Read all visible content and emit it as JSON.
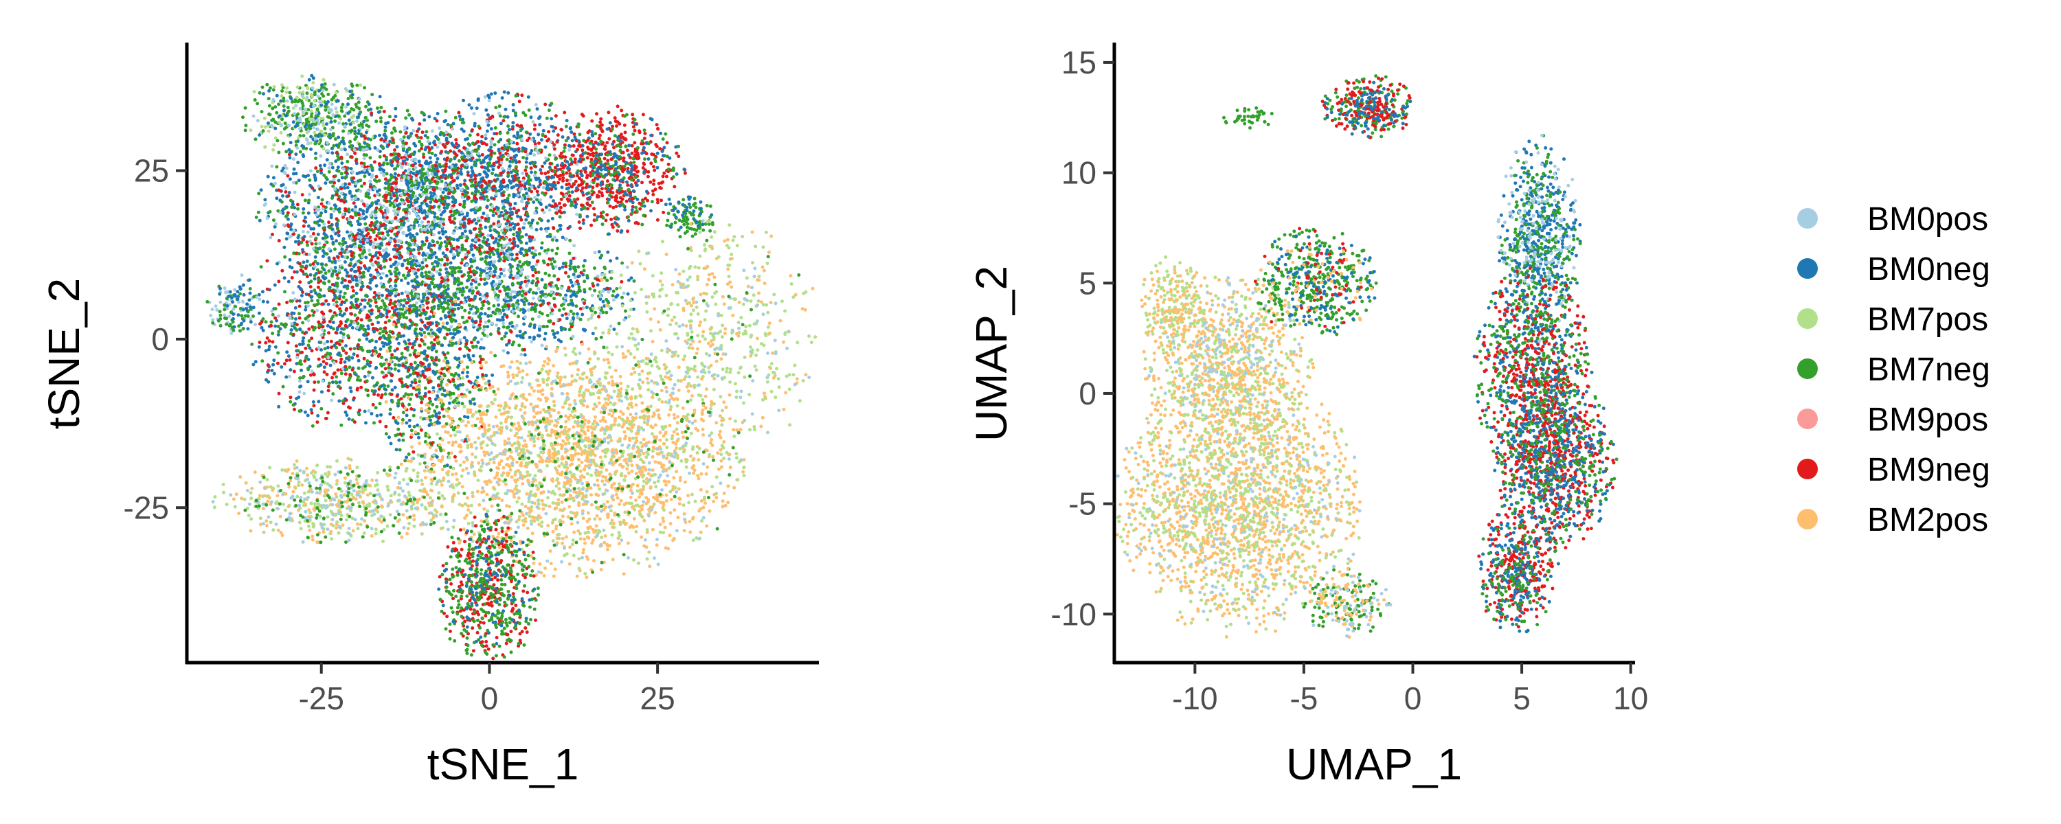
{
  "chart_data": [
    {
      "type": "scatter",
      "title": "",
      "xlabel": "tSNE_1",
      "ylabel": "tSNE_2",
      "xlim": [
        -45,
        49
      ],
      "ylim": [
        -48,
        44
      ],
      "xticks": [
        -25,
        0,
        25
      ],
      "yticks": [
        -25,
        0,
        25
      ],
      "xtick_labels": [
        "-25",
        "0",
        "25"
      ],
      "ytick_labels": [
        "-25",
        "0",
        "25"
      ],
      "grid": false,
      "clusters": [
        {
          "name": "top-left-island",
          "cx": -26,
          "cy": 33,
          "rx": 7,
          "ry": 4,
          "n": 420,
          "mix": {
            "BM7neg": 0.55,
            "BM7pos": 0.2,
            "BM0neg": 0.15,
            "BM0pos": 0.1
          }
        },
        {
          "name": "upper-main",
          "cx": -14,
          "cy": 19,
          "rx": 13,
          "ry": 10,
          "n": 2000,
          "mix": {
            "BM0neg": 0.45,
            "BM7neg": 0.25,
            "BM9neg": 0.15,
            "BM0pos": 0.15
          }
        },
        {
          "name": "upper-mid",
          "cx": 2,
          "cy": 24,
          "rx": 9,
          "ry": 8,
          "n": 900,
          "mix": {
            "BM0neg": 0.45,
            "BM9neg": 0.25,
            "BM7neg": 0.2,
            "BM0pos": 0.1
          }
        },
        {
          "name": "upper-right-red",
          "cx": 18,
          "cy": 25,
          "rx": 7,
          "ry": 6,
          "n": 700,
          "mix": {
            "BM9neg": 0.6,
            "BM7neg": 0.2,
            "BM0neg": 0.2
          }
        },
        {
          "name": "left-lower",
          "cx": -22,
          "cy": 2,
          "rx": 9,
          "ry": 10,
          "n": 900,
          "mix": {
            "BM0neg": 0.35,
            "BM9neg": 0.3,
            "BM7neg": 0.3,
            "BM0pos": 0.05
          }
        },
        {
          "name": "center-mid",
          "cx": 3,
          "cy": 7,
          "rx": 12,
          "ry": 6,
          "n": 1000,
          "mix": {
            "BM0neg": 0.4,
            "BM7neg": 0.35,
            "BM0pos": 0.15,
            "BM9neg": 0.1
          }
        },
        {
          "name": "center-low",
          "cx": -9,
          "cy": -5,
          "rx": 6,
          "ry": 9,
          "n": 600,
          "mix": {
            "BM7neg": 0.45,
            "BM0neg": 0.3,
            "BM9neg": 0.15,
            "BM2pos": 0.1
          }
        },
        {
          "name": "far-left-small",
          "cx": -38,
          "cy": 5,
          "rx": 2.5,
          "ry": 3,
          "n": 130,
          "mix": {
            "BM0pos": 0.4,
            "BM7neg": 0.3,
            "BM0neg": 0.3
          }
        },
        {
          "name": "small-right-green",
          "cx": 30,
          "cy": 18,
          "rx": 2.5,
          "ry": 2,
          "n": 100,
          "mix": {
            "BM7neg": 0.8,
            "BM0neg": 0.2
          }
        },
        {
          "name": "lower-beige",
          "cx": 13,
          "cy": -18,
          "rx": 16,
          "ry": 11,
          "n": 2200,
          "mix": {
            "BM2pos": 0.65,
            "BM7pos": 0.2,
            "BM0pos": 0.1,
            "BM7neg": 0.05
          }
        },
        {
          "name": "right-scatter",
          "cx": 32,
          "cy": 0,
          "rx": 11,
          "ry": 12,
          "n": 600,
          "mix": {
            "BM7pos": 0.55,
            "BM2pos": 0.25,
            "BM0pos": 0.15,
            "BM7neg": 0.05
          }
        },
        {
          "name": "lower-left-tail",
          "cx": -22,
          "cy": -24,
          "rx": 12,
          "ry": 4,
          "n": 600,
          "mix": {
            "BM7pos": 0.35,
            "BM2pos": 0.3,
            "BM0pos": 0.2,
            "BM7neg": 0.15
          }
        },
        {
          "name": "bottom-red-green",
          "cx": 0,
          "cy": -37,
          "rx": 5,
          "ry": 7,
          "n": 650,
          "mix": {
            "BM9neg": 0.4,
            "BM7neg": 0.45,
            "BM0neg": 0.15
          }
        }
      ]
    },
    {
      "type": "scatter",
      "title": "",
      "xlabel": "UMAP_1",
      "ylabel": "UMAP_2",
      "xlim": [
        -13.7,
        10.2
      ],
      "ylim": [
        -12.2,
        15.9
      ],
      "xticks": [
        -10,
        -5,
        0,
        5,
        10
      ],
      "yticks": [
        -10,
        -5,
        0,
        5,
        10,
        15
      ],
      "xtick_labels": [
        "-10",
        "-5",
        "0",
        "5",
        "10"
      ],
      "ytick_labels": [
        "-10",
        "-5",
        "0",
        "5",
        "10",
        "15"
      ],
      "grid": false,
      "clusters": [
        {
          "name": "left-body-top",
          "cx": -8.5,
          "cy": 1.5,
          "rx": 2.5,
          "ry": 2.5,
          "n": 900,
          "mix": {
            "BM2pos": 0.55,
            "BM7pos": 0.3,
            "BM0pos": 0.15
          }
        },
        {
          "name": "left-body-bottom",
          "cx": -8,
          "cy": -5,
          "rx": 3.6,
          "ry": 3.8,
          "n": 2000,
          "mix": {
            "BM2pos": 0.6,
            "BM7pos": 0.3,
            "BM0pos": 0.1
          }
        },
        {
          "name": "left-body-upper-arm",
          "cx": -11,
          "cy": 4,
          "rx": 1,
          "ry": 1.5,
          "n": 200,
          "mix": {
            "BM7pos": 0.6,
            "BM2pos": 0.4
          }
        },
        {
          "name": "green-arm",
          "cx": -4.5,
          "cy": 5,
          "rx": 1.8,
          "ry": 1.6,
          "n": 500,
          "mix": {
            "BM7neg": 0.6,
            "BM0neg": 0.2,
            "BM9neg": 0.1,
            "BM2pos": 0.1
          }
        },
        {
          "name": "bottom-tail",
          "cx": -3,
          "cy": -9.5,
          "rx": 1.3,
          "ry": 1,
          "n": 200,
          "mix": {
            "BM7neg": 0.5,
            "BM2pos": 0.3,
            "BM0pos": 0.2
          }
        },
        {
          "name": "top-island",
          "cx": -2,
          "cy": 13,
          "rx": 1.4,
          "ry": 0.9,
          "n": 350,
          "mix": {
            "BM7neg": 0.4,
            "BM9neg": 0.35,
            "BM0neg": 0.25
          }
        },
        {
          "name": "tiny-island",
          "cx": -7.5,
          "cy": 12.5,
          "rx": 0.8,
          "ry": 0.3,
          "n": 40,
          "mix": {
            "BM7neg": 1.0
          }
        },
        {
          "name": "right-top",
          "cx": 5.8,
          "cy": 7,
          "rx": 1.2,
          "ry": 3,
          "n": 700,
          "mix": {
            "BM0neg": 0.5,
            "BM7neg": 0.3,
            "BM0pos": 0.2
          }
        },
        {
          "name": "right-mid",
          "cx": 5.5,
          "cy": 1,
          "rx": 1.7,
          "ry": 3.2,
          "n": 900,
          "mix": {
            "BM0neg": 0.35,
            "BM9neg": 0.35,
            "BM7neg": 0.3
          }
        },
        {
          "name": "right-lower",
          "cx": 6.5,
          "cy": -3,
          "rx": 1.8,
          "ry": 2.6,
          "n": 1000,
          "mix": {
            "BM9neg": 0.45,
            "BM0neg": 0.35,
            "BM7neg": 0.2
          }
        },
        {
          "name": "right-bottom",
          "cx": 4.8,
          "cy": -8,
          "rx": 1.2,
          "ry": 1.8,
          "n": 500,
          "mix": {
            "BM9neg": 0.45,
            "BM0neg": 0.35,
            "BM7neg": 0.2
          }
        }
      ]
    }
  ],
  "legend": {
    "placement": "right",
    "entries": [
      {
        "label": "BM0pos",
        "color": "#a6cee3"
      },
      {
        "label": "BM0neg",
        "color": "#1f78b4"
      },
      {
        "label": "BM7pos",
        "color": "#b2df8a"
      },
      {
        "label": "BM7neg",
        "color": "#33a02c"
      },
      {
        "label": "BM9pos",
        "color": "#fb9a99"
      },
      {
        "label": "BM9neg",
        "color": "#e31a1c"
      },
      {
        "label": "BM2pos",
        "color": "#fdbf6f"
      }
    ]
  }
}
